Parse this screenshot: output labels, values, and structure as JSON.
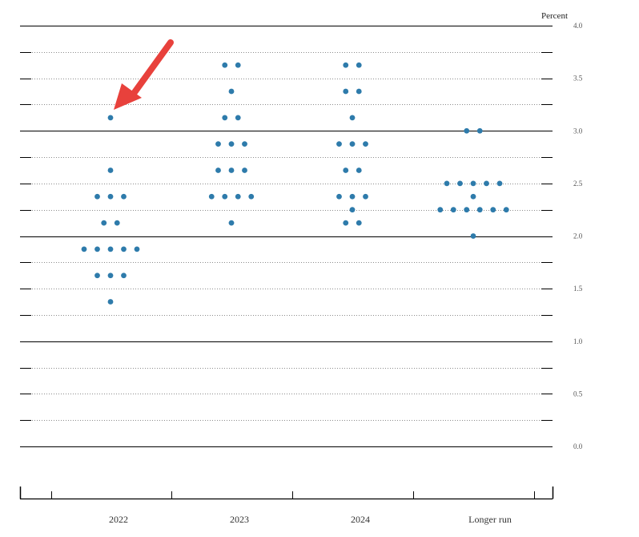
{
  "chart_data": {
    "type": "scatter",
    "subtype": "dot-plot",
    "ylabel": "Percent",
    "ylim": [
      0.0,
      4.0
    ],
    "ytick_labels": [
      "0.0",
      "0.5",
      "1.0",
      "1.5",
      "2.0",
      "2.5",
      "3.0",
      "3.5",
      "4.0"
    ],
    "categories": [
      "2022",
      "2023",
      "2024",
      "Longer run"
    ],
    "grid": "dotted at 0.25 steps, solid at 1.0 steps",
    "legend": "none",
    "dot_color": "#2e7bab",
    "annotation": {
      "type": "arrow",
      "color": "#e8413c",
      "points_to": {
        "category": "2022",
        "value": 3.125
      }
    },
    "series": [
      {
        "category": "2022",
        "rows": [
          {
            "value": 3.125,
            "count": 1
          },
          {
            "value": 2.625,
            "count": 1
          },
          {
            "value": 2.375,
            "count": 3
          },
          {
            "value": 2.125,
            "count": 2
          },
          {
            "value": 1.875,
            "count": 5
          },
          {
            "value": 1.625,
            "count": 3
          },
          {
            "value": 1.375,
            "count": 1
          }
        ]
      },
      {
        "category": "2023",
        "rows": [
          {
            "value": 3.625,
            "count": 2
          },
          {
            "value": 3.375,
            "count": 1
          },
          {
            "value": 3.125,
            "count": 2
          },
          {
            "value": 2.875,
            "count": 3
          },
          {
            "value": 2.625,
            "count": 3
          },
          {
            "value": 2.375,
            "count": 4
          },
          {
            "value": 2.125,
            "count": 1
          }
        ]
      },
      {
        "category": "2024",
        "rows": [
          {
            "value": 3.625,
            "count": 2
          },
          {
            "value": 3.375,
            "count": 2
          },
          {
            "value": 3.125,
            "count": 1
          },
          {
            "value": 2.875,
            "count": 3
          },
          {
            "value": 2.625,
            "count": 2
          },
          {
            "value": 2.375,
            "count": 3
          },
          {
            "value": 2.25,
            "count": 1
          },
          {
            "value": 2.125,
            "count": 2
          }
        ]
      },
      {
        "category": "Longer run",
        "rows": [
          {
            "value": 3.0,
            "count": 2
          },
          {
            "value": 2.5,
            "count": 5
          },
          {
            "value": 2.375,
            "count": 1
          },
          {
            "value": 2.25,
            "count": 6
          },
          {
            "value": 2.0,
            "count": 1
          }
        ]
      }
    ]
  }
}
